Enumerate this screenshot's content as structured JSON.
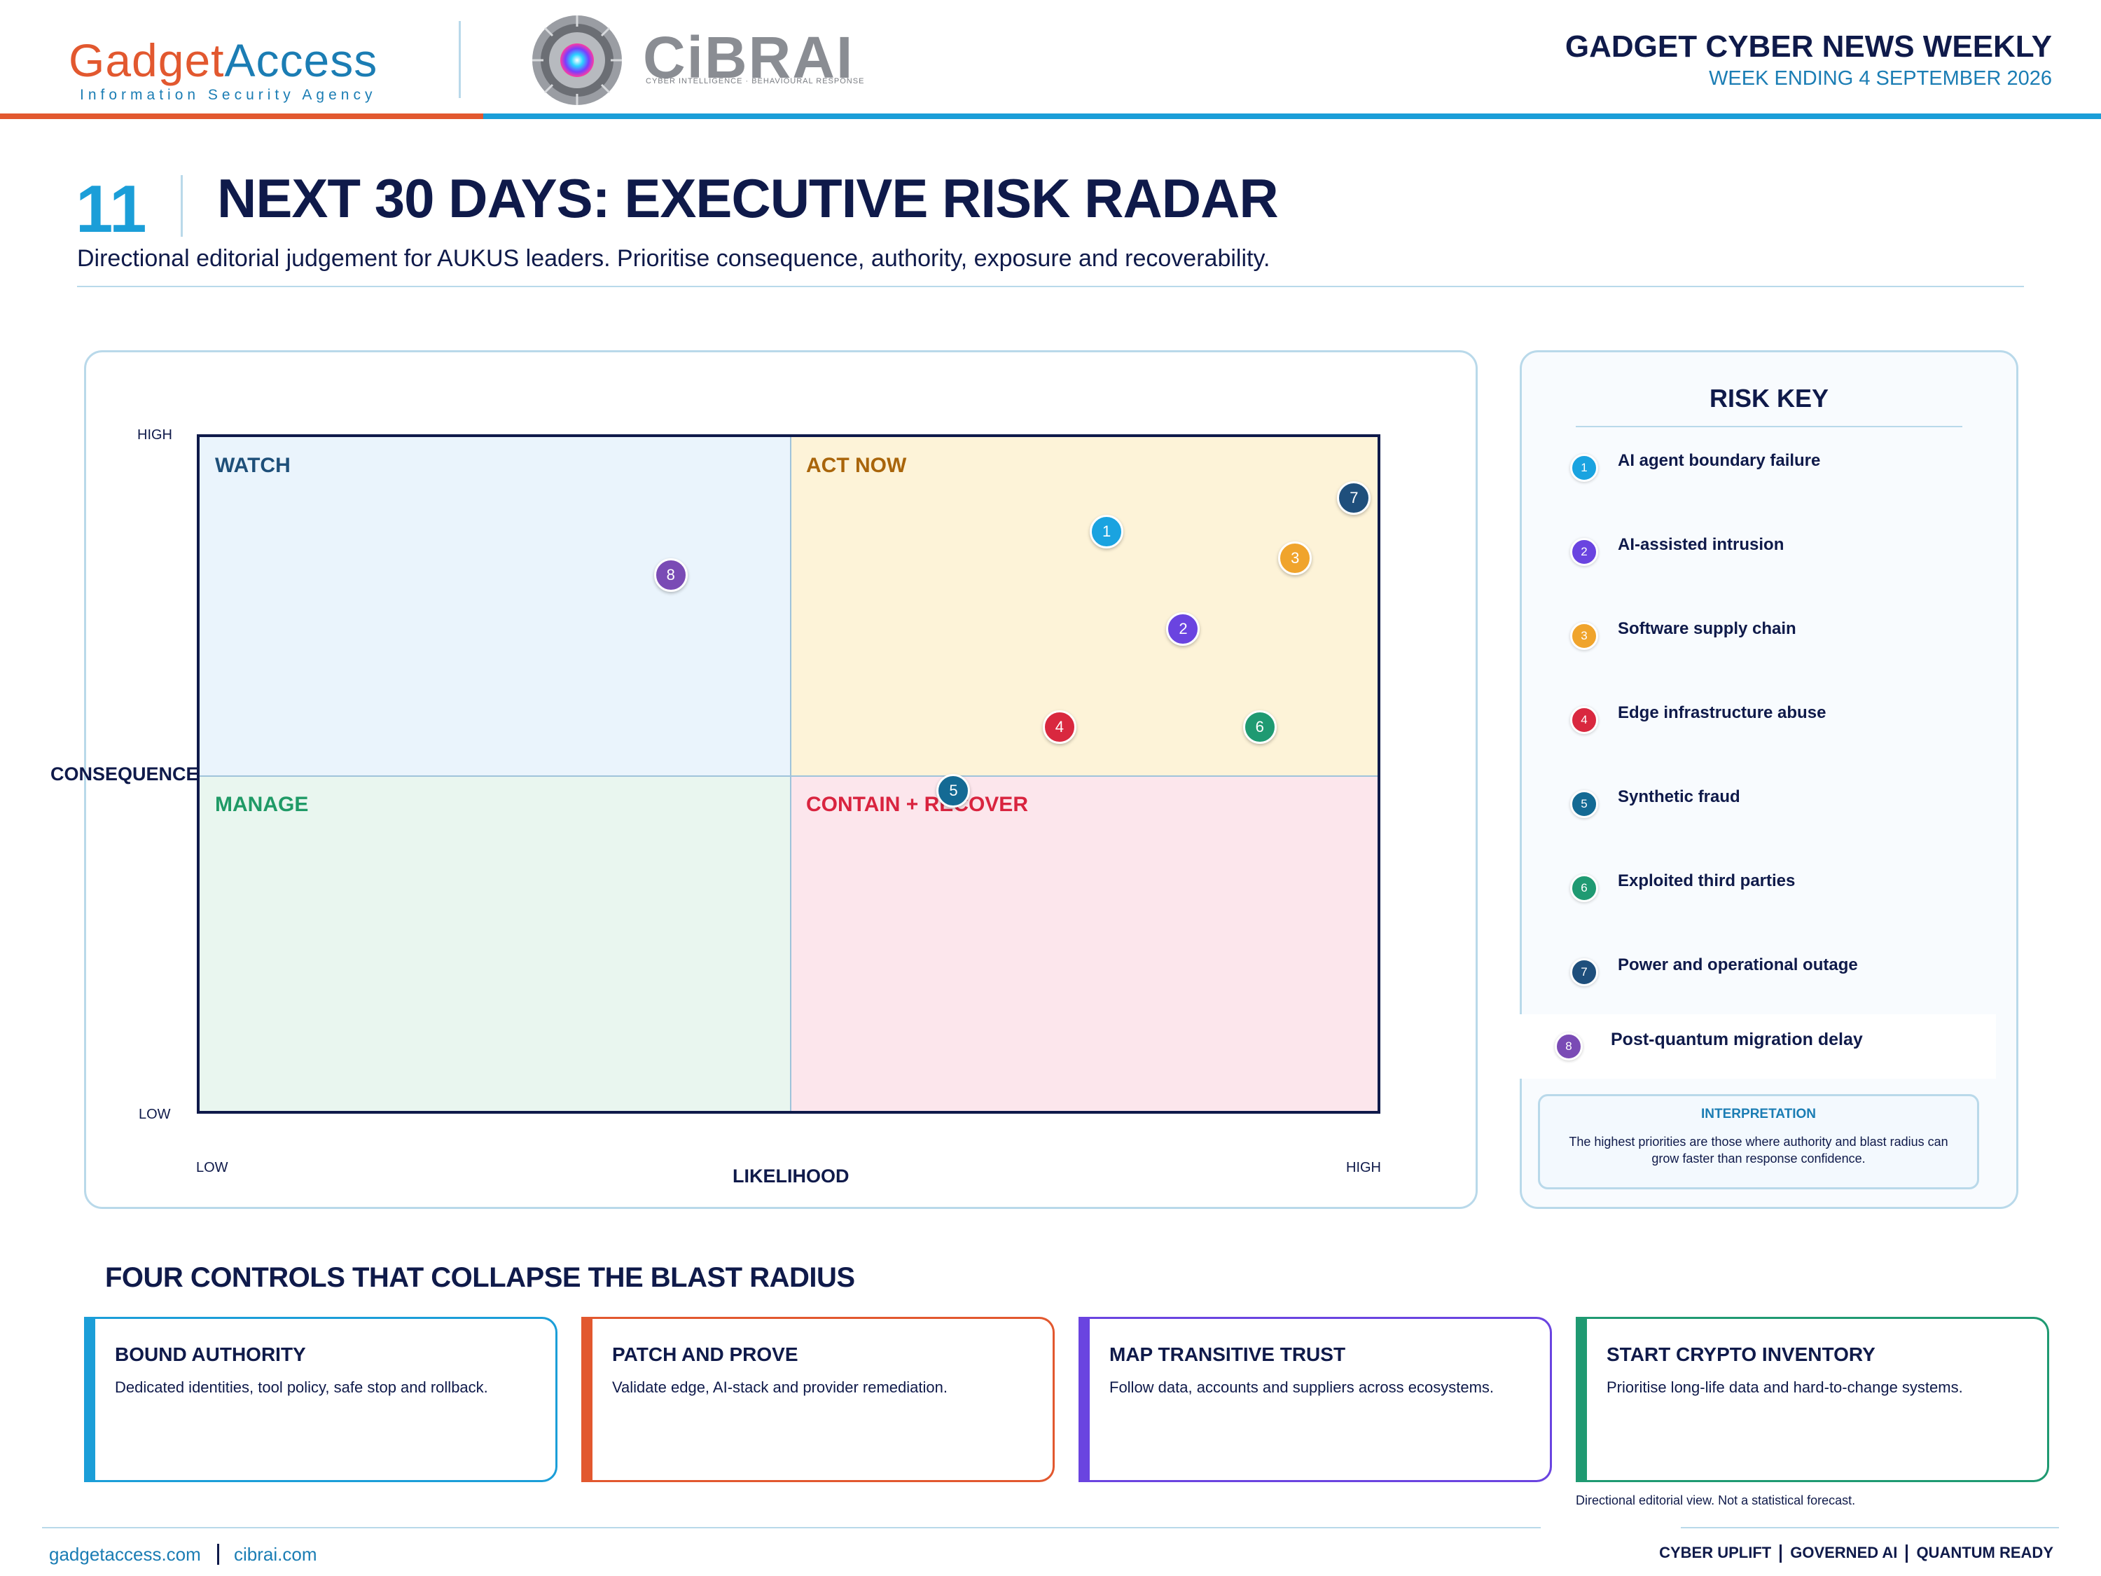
{
  "header": {
    "brand_part1": "Gad",
    "brand_part2": "get",
    "brand_part3": "Access",
    "brand_subtitle": "Information Security Agency",
    "cibrai_name": "CiBRAI",
    "cibrai_subtitle": "CYBER INTELLIGENCE · BEHAVIOURAL RESPONSE",
    "publication_title": "GADGET CYBER NEWS WEEKLY",
    "publication_week": "WEEK ENDING 4 SEPTEMBER 2026"
  },
  "section": {
    "number": "11",
    "title": "NEXT 30 DAYS: EXECUTIVE RISK RADAR",
    "subtitle": "Directional editorial judgement for AUKUS leaders. Prioritise consequence, authority, exposure and recoverability."
  },
  "chart_data": {
    "type": "scatter",
    "x_axis": {
      "label": "LIKELIHOOD",
      "low": "LOW",
      "high": "HIGH",
      "range": [
        0,
        100
      ]
    },
    "y_axis": {
      "label": "CONSEQUENCE",
      "low": "LOW",
      "high": "HIGH",
      "range": [
        0,
        100
      ]
    },
    "quadrants": [
      {
        "name": "WATCH",
        "color": "#eaf4fc",
        "label_color": "#1e4f79"
      },
      {
        "name": "ACT NOW",
        "color": "#fdf3d8",
        "label_color": "#a9650b"
      },
      {
        "name": "MANAGE",
        "color": "#e9f6ef",
        "label_color": "#1f9a66"
      },
      {
        "name": "CONTAIN + RECOVER",
        "color": "#fce6ec",
        "label_color": "#d9243f"
      }
    ],
    "points": [
      {
        "id": "1",
        "name": "AI agent boundary failure",
        "x": 77,
        "y": 86,
        "color": "#1aa3e0"
      },
      {
        "id": "2",
        "name": "AI-assisted intrusion",
        "x": 83.5,
        "y": 71.5,
        "color": "#6a44e0"
      },
      {
        "id": "3",
        "name": "Software supply chain",
        "x": 93,
        "y": 82,
        "color": "#f0a42c"
      },
      {
        "id": "4",
        "name": "Edge infrastructure abuse",
        "x": 73,
        "y": 57,
        "color": "#d9283f"
      },
      {
        "id": "5",
        "name": "Synthetic fraud",
        "x": 64,
        "y": 47.5,
        "color": "#146a94"
      },
      {
        "id": "6",
        "name": "Exploited third parties",
        "x": 90,
        "y": 57,
        "color": "#1f9a72"
      },
      {
        "id": "7",
        "name": "Power and operational outage",
        "x": 98,
        "y": 91,
        "color": "#1f4f7c"
      },
      {
        "id": "8",
        "name": "Post-quantum migration delay",
        "x": 40,
        "y": 79.5,
        "color": "#7a4bb5"
      }
    ]
  },
  "risk_key": {
    "title": "RISK KEY",
    "interpretation_title": "INTERPRETATION",
    "interpretation_body": "The highest priorities are those where authority and blast radius can grow faster than response confidence."
  },
  "controls": {
    "heading": "FOUR CONTROLS THAT COLLAPSE THE BLAST RADIUS",
    "items": [
      {
        "title": "BOUND AUTHORITY",
        "body": "Dedicated identities, tool policy, safe stop and rollback.",
        "color": "#1b9ed8"
      },
      {
        "title": "PATCH AND PROVE",
        "body": "Validate edge, AI-stack and provider remediation.",
        "color": "#e2582f"
      },
      {
        "title": "MAP TRANSITIVE TRUST",
        "body": "Follow data, accounts and suppliers across ecosystems.",
        "color": "#6a44e0"
      },
      {
        "title": "START CRYPTO INVENTORY",
        "body": "Prioritise long-life data and hard-to-change systems.",
        "color": "#1f9a72"
      }
    ],
    "footnote": "Directional editorial view. Not a statistical forecast."
  },
  "footer": {
    "link1": "gadgetaccess.com",
    "link2": "cibrai.com",
    "tag1": "CYBER UPLIFT",
    "tag2": "GOVERNED AI",
    "tag3": "QUANTUM READY"
  }
}
